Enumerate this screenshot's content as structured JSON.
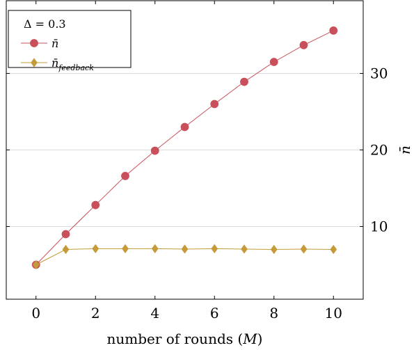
{
  "chart_data": {
    "type": "line",
    "xlabel": "number of rounds (M)",
    "ylabel": "n̄",
    "xlim": [
      -1,
      11
    ],
    "ylim": [
      0.5,
      39.5
    ],
    "xticks": [
      0,
      2,
      4,
      6,
      8,
      10
    ],
    "yticks": [
      10,
      20,
      30
    ],
    "y_axis_side": "right",
    "grid": "horizontal",
    "legend": {
      "title": "Δ = 0.3",
      "placement": "top-left"
    },
    "x": [
      0,
      1,
      2,
      3,
      4,
      5,
      6,
      7,
      8,
      9,
      10
    ],
    "series": [
      {
        "name": "n̄",
        "label_base": "n̄",
        "label_sub": "",
        "color": "#c9505a",
        "marker": "circle",
        "values": [
          5.0,
          9.0,
          12.8,
          16.6,
          19.9,
          23.0,
          26.0,
          28.9,
          31.5,
          33.7,
          35.6
        ]
      },
      {
        "name": "n̄feedback",
        "label_base": "n̄",
        "label_sub": "feedback",
        "color": "#c59a38",
        "marker": "diamond",
        "values": [
          5.0,
          7.0,
          7.1,
          7.1,
          7.1,
          7.05,
          7.1,
          7.05,
          7.0,
          7.05,
          7.0
        ]
      }
    ]
  }
}
